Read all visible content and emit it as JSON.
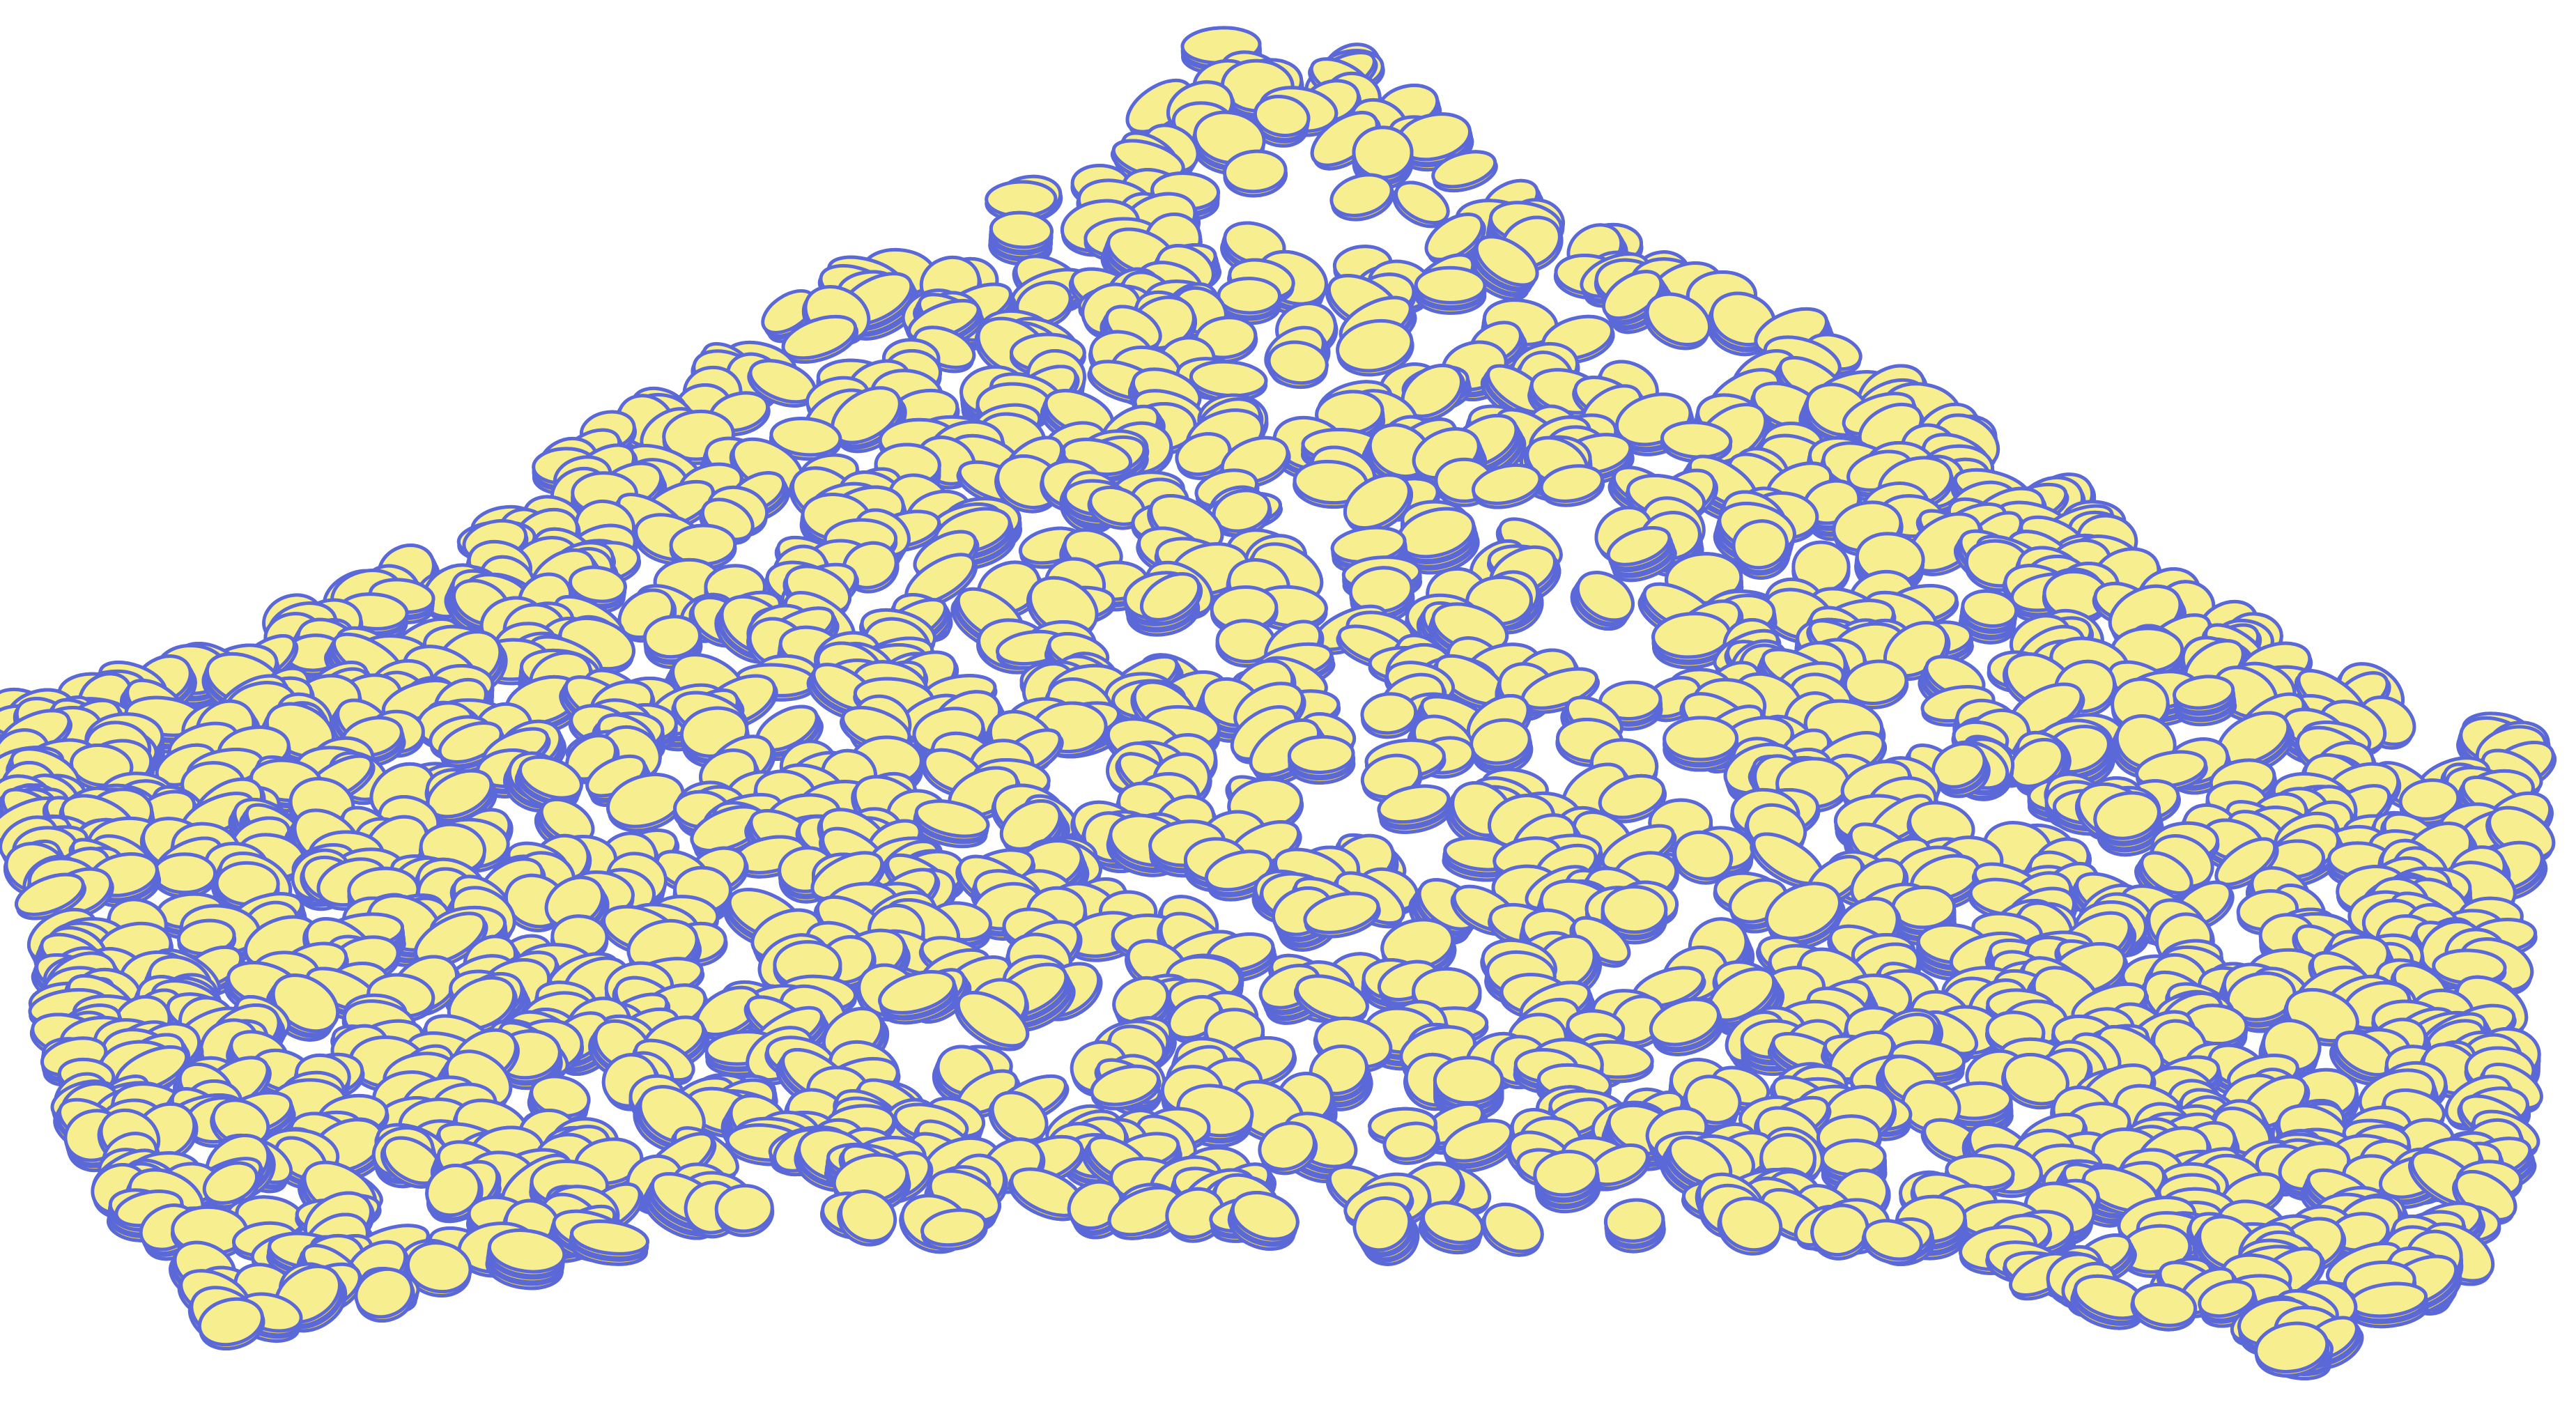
{
  "illustration": {
    "subject_icon": "coin-pile-icon",
    "colors": {
      "background": "#ffffff",
      "coin_face": "#f7ef8f",
      "coin_edge": "#f2d84a",
      "outline": "#5b68d8"
    }
  }
}
